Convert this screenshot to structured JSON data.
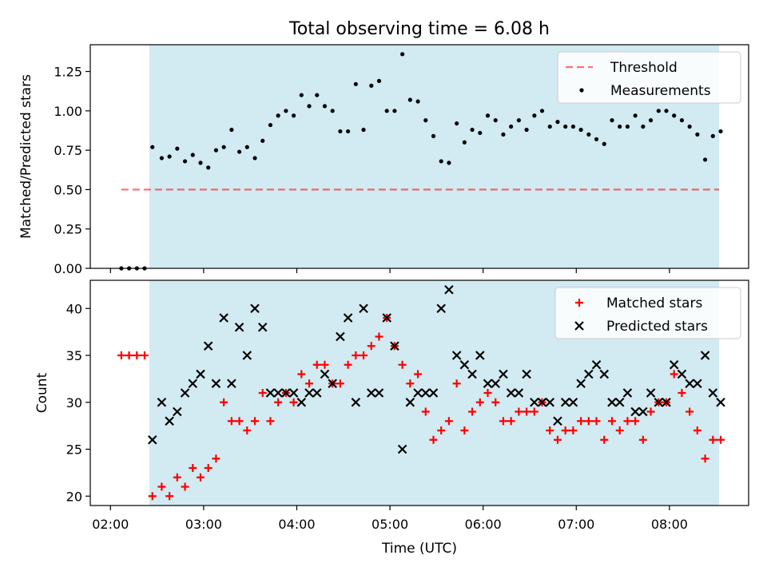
{
  "figure": {
    "title": "Total observing time = 6.08 h",
    "xlabel": "Time (UTC)",
    "x_ticks": [
      "02:00",
      "03:00",
      "04:00",
      "05:00",
      "06:00",
      "07:00",
      "08:00"
    ]
  },
  "colors": {
    "shade": "#add8e6",
    "threshold": "#ff0000",
    "matched": "#ff0000",
    "predicted": "#000000",
    "measurement": "#000000"
  },
  "chart_data": [
    {
      "type": "scatter",
      "ylabel": "Matched/Predicted stars",
      "xlim": [
        "01:47",
        "08:51"
      ],
      "ylim": [
        0,
        1.42
      ],
      "y_ticks": [
        "0.00",
        "0.25",
        "0.50",
        "0.75",
        "1.00",
        "1.25"
      ],
      "shaded_span": [
        "02:25",
        "08:32"
      ],
      "legend": {
        "position": "top-right",
        "entries": [
          "Threshold",
          "Measurements"
        ]
      },
      "threshold": {
        "name": "Threshold",
        "style": "dashed",
        "value": 0.5,
        "x_range": [
          "02:07",
          "08:32"
        ]
      },
      "series": [
        {
          "name": "Measurements",
          "points": [
            [
              "02:07",
              0.0
            ],
            [
              "02:12",
              0.0
            ],
            [
              "02:17",
              0.0
            ],
            [
              "02:22",
              0.0
            ],
            [
              "02:27",
              0.77
            ],
            [
              "02:33",
              0.7
            ],
            [
              "02:38",
              0.71
            ],
            [
              "02:43",
              0.76
            ],
            [
              "02:48",
              0.68
            ],
            [
              "02:53",
              0.72
            ],
            [
              "02:58",
              0.67
            ],
            [
              "03:03",
              0.64
            ],
            [
              "03:08",
              0.75
            ],
            [
              "03:13",
              0.77
            ],
            [
              "03:18",
              0.88
            ],
            [
              "03:23",
              0.74
            ],
            [
              "03:28",
              0.77
            ],
            [
              "03:33",
              0.7
            ],
            [
              "03:38",
              0.81
            ],
            [
              "03:43",
              0.91
            ],
            [
              "03:48",
              0.97
            ],
            [
              "03:53",
              1.0
            ],
            [
              "03:58",
              0.97
            ],
            [
              "04:03",
              1.1
            ],
            [
              "04:08",
              1.03
            ],
            [
              "04:13",
              1.1
            ],
            [
              "04:18",
              1.03
            ],
            [
              "04:23",
              1.0
            ],
            [
              "04:28",
              0.87
            ],
            [
              "04:33",
              0.87
            ],
            [
              "04:38",
              1.17
            ],
            [
              "04:43",
              0.88
            ],
            [
              "04:48",
              1.16
            ],
            [
              "04:53",
              1.19
            ],
            [
              "04:58",
              1.0
            ],
            [
              "05:03",
              1.0
            ],
            [
              "05:08",
              1.36
            ],
            [
              "05:13",
              1.07
            ],
            [
              "05:18",
              1.06
            ],
            [
              "05:23",
              0.94
            ],
            [
              "05:28",
              0.84
            ],
            [
              "05:33",
              0.68
            ],
            [
              "05:38",
              0.67
            ],
            [
              "05:43",
              0.92
            ],
            [
              "05:48",
              0.8
            ],
            [
              "05:53",
              0.88
            ],
            [
              "05:58",
              0.86
            ],
            [
              "06:03",
              0.97
            ],
            [
              "06:08",
              0.94
            ],
            [
              "06:13",
              0.85
            ],
            [
              "06:18",
              0.9
            ],
            [
              "06:23",
              0.94
            ],
            [
              "06:28",
              0.88
            ],
            [
              "06:33",
              0.97
            ],
            [
              "06:38",
              1.0
            ],
            [
              "06:43",
              0.9
            ],
            [
              "06:48",
              0.93
            ],
            [
              "06:53",
              0.9
            ],
            [
              "06:58",
              0.9
            ],
            [
              "07:03",
              0.88
            ],
            [
              "07:08",
              0.85
            ],
            [
              "07:13",
              0.82
            ],
            [
              "07:18",
              0.79
            ],
            [
              "07:23",
              0.94
            ],
            [
              "07:28",
              0.9
            ],
            [
              "07:33",
              0.9
            ],
            [
              "07:38",
              0.97
            ],
            [
              "07:43",
              0.9
            ],
            [
              "07:48",
              0.94
            ],
            [
              "07:53",
              1.0
            ],
            [
              "07:58",
              1.0
            ],
            [
              "08:03",
              0.97
            ],
            [
              "08:08",
              0.94
            ],
            [
              "08:13",
              0.9
            ],
            [
              "08:18",
              0.85
            ],
            [
              "08:23",
              0.69
            ],
            [
              "08:28",
              0.84
            ],
            [
              "08:33",
              0.87
            ]
          ]
        }
      ]
    },
    {
      "type": "scatter",
      "ylabel": "Count",
      "xlim": [
        "01:47",
        "08:51"
      ],
      "ylim": [
        19,
        43
      ],
      "y_ticks": [
        "20",
        "25",
        "30",
        "35",
        "40"
      ],
      "shaded_span": [
        "02:25",
        "08:32"
      ],
      "legend": {
        "position": "top-right",
        "entries": [
          "Matched stars",
          "Predicted stars"
        ]
      },
      "series": [
        {
          "name": "Matched stars",
          "marker": "+",
          "points": [
            [
              "02:07",
              35
            ],
            [
              "02:12",
              35
            ],
            [
              "02:17",
              35
            ],
            [
              "02:22",
              35
            ],
            [
              "02:27",
              20
            ],
            [
              "02:33",
              21
            ],
            [
              "02:38",
              20
            ],
            [
              "02:43",
              22
            ],
            [
              "02:48",
              21
            ],
            [
              "02:53",
              23
            ],
            [
              "02:58",
              22
            ],
            [
              "03:03",
              23
            ],
            [
              "03:08",
              24
            ],
            [
              "03:13",
              30
            ],
            [
              "03:18",
              28
            ],
            [
              "03:23",
              28
            ],
            [
              "03:28",
              27
            ],
            [
              "03:33",
              28
            ],
            [
              "03:38",
              31
            ],
            [
              "03:43",
              28
            ],
            [
              "03:48",
              30
            ],
            [
              "03:53",
              31
            ],
            [
              "03:58",
              30
            ],
            [
              "04:03",
              33
            ],
            [
              "04:08",
              32
            ],
            [
              "04:13",
              34
            ],
            [
              "04:18",
              34
            ],
            [
              "04:23",
              32
            ],
            [
              "04:28",
              32
            ],
            [
              "04:33",
              34
            ],
            [
              "04:38",
              35
            ],
            [
              "04:43",
              35
            ],
            [
              "04:48",
              36
            ],
            [
              "04:53",
              37
            ],
            [
              "04:58",
              39
            ],
            [
              "05:03",
              36
            ],
            [
              "05:08",
              34
            ],
            [
              "05:13",
              32
            ],
            [
              "05:18",
              33
            ],
            [
              "05:23",
              29
            ],
            [
              "05:28",
              26
            ],
            [
              "05:33",
              27
            ],
            [
              "05:38",
              28
            ],
            [
              "05:43",
              32
            ],
            [
              "05:48",
              27
            ],
            [
              "05:53",
              29
            ],
            [
              "05:58",
              30
            ],
            [
              "06:03",
              31
            ],
            [
              "06:08",
              30
            ],
            [
              "06:13",
              28
            ],
            [
              "06:18",
              28
            ],
            [
              "06:23",
              29
            ],
            [
              "06:28",
              29
            ],
            [
              "06:33",
              29
            ],
            [
              "06:38",
              30
            ],
            [
              "06:43",
              27
            ],
            [
              "06:48",
              26
            ],
            [
              "06:53",
              27
            ],
            [
              "06:58",
              27
            ],
            [
              "07:03",
              28
            ],
            [
              "07:08",
              28
            ],
            [
              "07:13",
              28
            ],
            [
              "07:18",
              26
            ],
            [
              "07:23",
              28
            ],
            [
              "07:28",
              27
            ],
            [
              "07:33",
              28
            ],
            [
              "07:38",
              28
            ],
            [
              "07:43",
              26
            ],
            [
              "07:48",
              29
            ],
            [
              "07:53",
              30
            ],
            [
              "07:58",
              30
            ],
            [
              "08:03",
              33
            ],
            [
              "08:08",
              31
            ],
            [
              "08:13",
              29
            ],
            [
              "08:18",
              27
            ],
            [
              "08:23",
              24
            ],
            [
              "08:28",
              26
            ],
            [
              "08:33",
              26
            ]
          ]
        },
        {
          "name": "Predicted stars",
          "marker": "x",
          "points": [
            [
              "02:27",
              26
            ],
            [
              "02:33",
              30
            ],
            [
              "02:38",
              28
            ],
            [
              "02:43",
              29
            ],
            [
              "02:48",
              31
            ],
            [
              "02:53",
              32
            ],
            [
              "02:58",
              33
            ],
            [
              "03:03",
              36
            ],
            [
              "03:08",
              32
            ],
            [
              "03:13",
              39
            ],
            [
              "03:18",
              32
            ],
            [
              "03:23",
              38
            ],
            [
              "03:28",
              35
            ],
            [
              "03:33",
              40
            ],
            [
              "03:38",
              38
            ],
            [
              "03:43",
              31
            ],
            [
              "03:48",
              31
            ],
            [
              "03:53",
              31
            ],
            [
              "03:58",
              31
            ],
            [
              "04:03",
              30
            ],
            [
              "04:08",
              31
            ],
            [
              "04:13",
              31
            ],
            [
              "04:18",
              33
            ],
            [
              "04:23",
              32
            ],
            [
              "04:28",
              37
            ],
            [
              "04:33",
              39
            ],
            [
              "04:38",
              30
            ],
            [
              "04:43",
              40
            ],
            [
              "04:48",
              31
            ],
            [
              "04:53",
              31
            ],
            [
              "04:58",
              39
            ],
            [
              "05:03",
              36
            ],
            [
              "05:08",
              25
            ],
            [
              "05:13",
              30
            ],
            [
              "05:18",
              31
            ],
            [
              "05:23",
              31
            ],
            [
              "05:28",
              31
            ],
            [
              "05:33",
              40
            ],
            [
              "05:38",
              42
            ],
            [
              "05:43",
              35
            ],
            [
              "05:48",
              34
            ],
            [
              "05:53",
              33
            ],
            [
              "05:58",
              35
            ],
            [
              "06:03",
              32
            ],
            [
              "06:08",
              32
            ],
            [
              "06:13",
              33
            ],
            [
              "06:18",
              31
            ],
            [
              "06:23",
              31
            ],
            [
              "06:28",
              33
            ],
            [
              "06:33",
              30
            ],
            [
              "06:38",
              30
            ],
            [
              "06:43",
              30
            ],
            [
              "06:48",
              28
            ],
            [
              "06:53",
              30
            ],
            [
              "06:58",
              30
            ],
            [
              "07:03",
              32
            ],
            [
              "07:08",
              33
            ],
            [
              "07:13",
              34
            ],
            [
              "07:18",
              33
            ],
            [
              "07:23",
              30
            ],
            [
              "07:28",
              30
            ],
            [
              "07:33",
              31
            ],
            [
              "07:38",
              29
            ],
            [
              "07:43",
              29
            ],
            [
              "07:48",
              31
            ],
            [
              "07:53",
              30
            ],
            [
              "07:58",
              30
            ],
            [
              "08:03",
              34
            ],
            [
              "08:08",
              33
            ],
            [
              "08:13",
              32
            ],
            [
              "08:18",
              32
            ],
            [
              "08:23",
              35
            ],
            [
              "08:28",
              31
            ],
            [
              "08:33",
              30
            ]
          ]
        }
      ]
    }
  ]
}
